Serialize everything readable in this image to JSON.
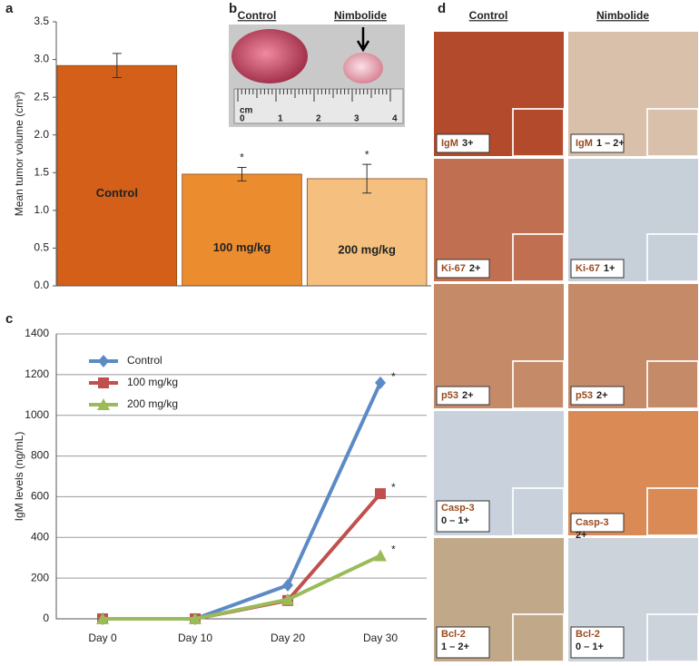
{
  "figure_labels": [
    "a",
    "b",
    "c",
    "d"
  ],
  "chart_data": [
    {
      "type": "bar",
      "ylabel": "Mean tumor volume (cm³)",
      "categories": [
        "Control",
        "100 mg/kg",
        "200 mg/kg"
      ],
      "values": [
        2.92,
        1.48,
        1.42
      ],
      "errors": [
        0.16,
        0.09,
        0.19
      ],
      "colors": [
        "#d35f18",
        "#eb8c2f",
        "#f5c07f"
      ],
      "annotations": [
        null,
        "*",
        "*"
      ],
      "ylim": [
        0,
        3.5
      ],
      "yticks": [
        {
          "value": 0,
          "label": "0.0"
        },
        0.5,
        {
          "value": 1,
          "label": "1.0"
        },
        1.5,
        {
          "value": 2,
          "label": "2.0"
        },
        2.5,
        {
          "value": 3,
          "label": "3.0"
        },
        3.5
      ]
    },
    {
      "type": "line",
      "ylabel": "IgM levels (ng/mL)",
      "categories": [
        "Day 0",
        "Day 10",
        "Day 20",
        "Day 30"
      ],
      "series": [
        {
          "name": "Control",
          "color": "#5b8ac6",
          "marker": "diamond",
          "values": [
            0,
            0,
            165,
            1160
          ],
          "annotations": [
            null,
            null,
            null,
            "*"
          ]
        },
        {
          "name": "100 mg/kg",
          "color": "#c0504d",
          "marker": "square",
          "values": [
            0,
            0,
            90,
            615
          ],
          "annotations": [
            null,
            null,
            null,
            "*"
          ]
        },
        {
          "name": "200 mg/kg",
          "color": "#9bbb59",
          "marker": "triangle",
          "values": [
            0,
            0,
            95,
            310
          ],
          "annotations": [
            null,
            null,
            null,
            "*"
          ]
        }
      ],
      "ylim": [
        0,
        1400
      ],
      "yticks": [
        0,
        200,
        400,
        600,
        800,
        1000,
        1200,
        1400
      ],
      "grid": true,
      "legend": "upper left"
    }
  ],
  "photo": {
    "labels": [
      "Control",
      "Nimbolide"
    ],
    "ruler_unit": "cm",
    "ruler_ticks": [
      "0",
      "1",
      "2",
      "3",
      "4"
    ]
  },
  "ihc": {
    "columns": [
      "Control",
      "Nimbolide"
    ],
    "rows": [
      [
        {
          "marker": "IgM",
          "score": "3+"
        },
        {
          "marker": "IgM",
          "score": "1 – 2+"
        }
      ],
      [
        {
          "marker": "Ki-67",
          "score": "2+"
        },
        {
          "marker": "Ki-67",
          "score": "1+"
        }
      ],
      [
        {
          "marker": "p53",
          "score": "2+"
        },
        {
          "marker": "p53",
          "score": "2+"
        }
      ],
      [
        {
          "marker": "Casp-3",
          "score": "0 – 1+"
        },
        {
          "marker": "Casp-3",
          "score": "2+"
        }
      ],
      [
        {
          "marker": "Bcl-2",
          "score": "1 – 2+"
        },
        {
          "marker": "Bcl-2",
          "score": "0 – 1+"
        }
      ]
    ]
  }
}
